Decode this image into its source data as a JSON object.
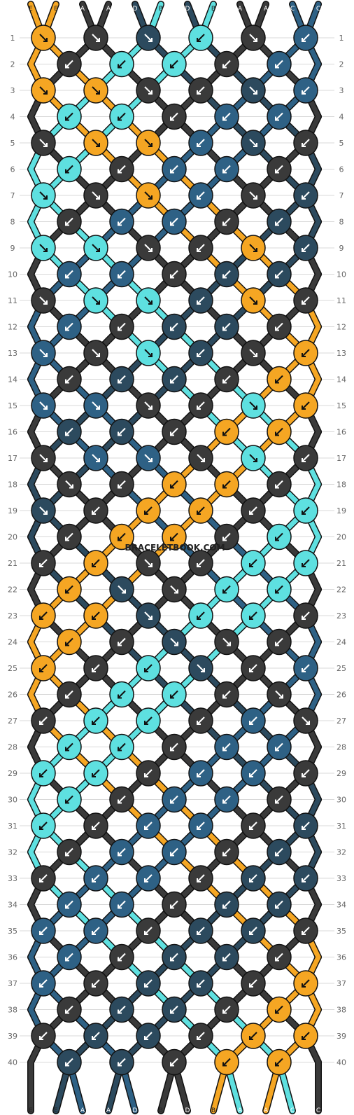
{
  "site_watermark": "BRACELETBOOK.COM",
  "colors": {
    "E": "#f5a623",
    "A": "#3a3a3a",
    "D": "#2c4a5e",
    "B": "#5ee0e0",
    "C": "#2e6185"
  },
  "string_labels_top": [
    "E",
    "E",
    "A",
    "A",
    "D",
    "B",
    "D",
    "B",
    "A",
    "A",
    "C",
    "C"
  ],
  "string_labels_bottom": [
    "E",
    "E",
    "A",
    "A",
    "D",
    "B",
    "D",
    "B",
    "A",
    "A",
    "C",
    "C"
  ],
  "row_labels": [
    "1",
    "2",
    "3",
    "4",
    "5",
    "6",
    "7",
    "8",
    "9",
    "10",
    "11",
    "12",
    "13",
    "14",
    "15",
    "16",
    "17",
    "18",
    "19",
    "20",
    "21",
    "22",
    "23",
    "24",
    "25",
    "26",
    "27",
    "28",
    "29",
    "30",
    "31",
    "32",
    "33",
    "34",
    "35",
    "36",
    "37",
    "38",
    "39",
    "40"
  ],
  "strings_initial": [
    "E",
    "E",
    "A",
    "A",
    "D",
    "B",
    "D",
    "B",
    "A",
    "A",
    "C",
    "C"
  ],
  "knot_rows": [
    [
      "f",
      "f",
      "f",
      "b",
      "f",
      "b"
    ],
    [
      "b",
      "b",
      "b",
      "b",
      "b"
    ],
    [
      "f",
      "f",
      "f",
      "b",
      "f",
      "b"
    ],
    [
      "b",
      "b",
      "b",
      "b",
      "b"
    ],
    [
      "f",
      "f",
      "f",
      "b",
      "f",
      "b"
    ],
    [
      "b",
      "b",
      "b",
      "b",
      "b"
    ],
    [
      "f",
      "f",
      "f",
      "b",
      "f",
      "b"
    ],
    [
      "b",
      "b",
      "b",
      "b",
      "b"
    ],
    [
      "f",
      "f",
      "f",
      "b",
      "f",
      "b"
    ],
    [
      "b",
      "b",
      "b",
      "b",
      "b"
    ],
    [
      "f",
      "f",
      "f",
      "b",
      "f",
      "b"
    ],
    [
      "b",
      "b",
      "b",
      "b",
      "b"
    ],
    [
      "f",
      "f",
      "f",
      "b",
      "f",
      "b"
    ],
    [
      "b",
      "b",
      "b",
      "b",
      "b"
    ],
    [
      "f",
      "f",
      "f",
      "b",
      "f",
      "b"
    ],
    [
      "b",
      "b",
      "b",
      "b",
      "b"
    ],
    [
      "f",
      "f",
      "f",
      "f",
      "f",
      "b"
    ],
    [
      "f",
      "b",
      "b",
      "b",
      "b"
    ],
    [
      "f",
      "b",
      "b",
      "b",
      "b",
      "b"
    ],
    [
      "b",
      "b",
      "b",
      "b",
      "b"
    ],
    [
      "b",
      "b",
      "f",
      "b",
      "b",
      "b"
    ],
    [
      "b",
      "f",
      "f",
      "b",
      "b"
    ],
    [
      "b",
      "b",
      "f",
      "b",
      "b",
      "b"
    ],
    [
      "b",
      "b",
      "f",
      "f",
      "b"
    ],
    [
      "b",
      "b",
      "b",
      "f",
      "b",
      "b"
    ],
    [
      "b",
      "b",
      "b",
      "b",
      "f"
    ],
    [
      "b",
      "b",
      "b",
      "b",
      "b",
      "f"
    ],
    [
      "b",
      "b",
      "b",
      "b",
      "b"
    ],
    [
      "b",
      "b",
      "b",
      "b",
      "b",
      "b"
    ],
    [
      "b",
      "b",
      "b",
      "b",
      "b"
    ],
    [
      "b",
      "b",
      "b",
      "b",
      "b",
      "b"
    ],
    [
      "b",
      "b",
      "b",
      "b",
      "b"
    ],
    [
      "b",
      "b",
      "b",
      "b",
      "b",
      "b"
    ],
    [
      "b",
      "b",
      "b",
      "b",
      "b"
    ],
    [
      "b",
      "b",
      "b",
      "b",
      "b",
      "b"
    ],
    [
      "b",
      "b",
      "b",
      "b",
      "b"
    ],
    [
      "b",
      "b",
      "b",
      "b",
      "b",
      "b"
    ],
    [
      "b",
      "b",
      "b",
      "b",
      "b"
    ],
    [
      "b",
      "b",
      "b",
      "b",
      "b",
      "b"
    ],
    [
      "b",
      "b",
      "b",
      "b",
      "b"
    ]
  ]
}
